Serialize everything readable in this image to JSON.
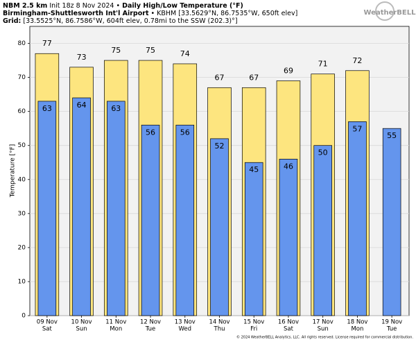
{
  "header": {
    "model": "NBM 2.5 km",
    "init": "Init 18z 8 Nov 2024 •",
    "product": "Daily High/Low Temperature (°F)",
    "station": "Birmingham-Shuttlesworth Int'l Airport",
    "station_info": "• KBHM [33.5629°N, 86.7535°W, 650ft elev]",
    "grid_label": "Grid:",
    "grid_info": "[33.5525°N, 86.7586°W, 604ft elev, 0.78mi to the SSW (202.3)°]",
    "logo": "WeatherBELL",
    "footer": "© 2024 WeatherBELL Analytics, LLC. All rights reserved. License required for commercial distribution."
  },
  "chart_data": {
    "type": "bar",
    "y_label": "Temperature [°F]",
    "categories": [
      "09 Nov",
      "10 Nov",
      "11 Nov",
      "12 Nov",
      "13 Nov",
      "14 Nov",
      "15 Nov",
      "16 Nov",
      "17 Nov",
      "18 Nov",
      "19 Nov"
    ],
    "weekdays": [
      "Sat",
      "Sun",
      "Mon",
      "Tue",
      "Wed",
      "Thu",
      "Fri",
      "Sat",
      "Sun",
      "Mon",
      "Tue"
    ],
    "series": [
      {
        "name": "High",
        "color": "#fde57f",
        "values": [
          77,
          73,
          75,
          75,
          74,
          67,
          67,
          69,
          71,
          72,
          null
        ]
      },
      {
        "name": "Low",
        "color": "#6495ed",
        "values": [
          63,
          64,
          63,
          56,
          56,
          52,
          45,
          46,
          50,
          57,
          55
        ]
      }
    ],
    "ylim": [
      0,
      85
    ],
    "yticks": [
      0,
      10,
      20,
      30,
      40,
      50,
      60,
      70,
      80
    ],
    "grid": true
  }
}
